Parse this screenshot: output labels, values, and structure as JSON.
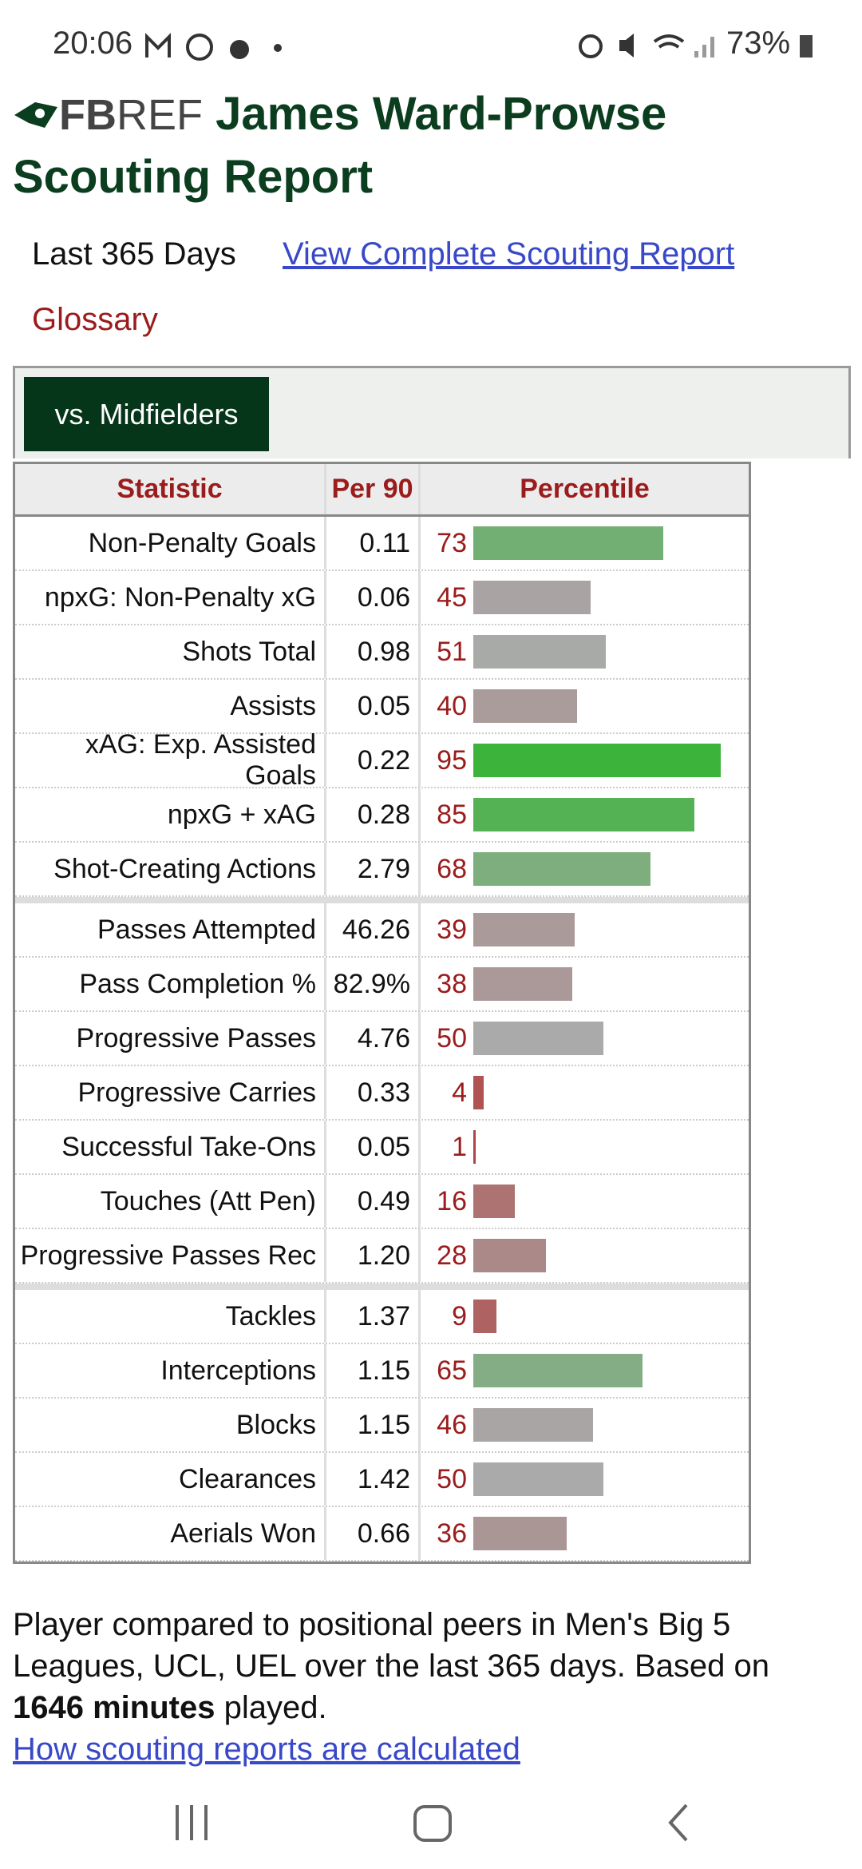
{
  "status_bar": {
    "time": "20:06",
    "battery": "73%"
  },
  "header": {
    "logo_bold": "FB",
    "logo_light": "REF",
    "title": "James Ward-Prowse Scouting Report"
  },
  "links": {
    "period": "Last 365 Days",
    "complete_report": "View Complete Scouting Report",
    "glossary": "Glossary"
  },
  "tab": "vs. Midfielders",
  "table": {
    "columns": [
      "Statistic",
      "Per 90",
      "Percentile"
    ],
    "groups": [
      [
        {
          "statistic": "Non-Penalty Goals",
          "per90": "0.11",
          "percentile": 73
        },
        {
          "statistic": "npxG: Non-Penalty xG",
          "per90": "0.06",
          "percentile": 45
        },
        {
          "statistic": "Shots Total",
          "per90": "0.98",
          "percentile": 51
        },
        {
          "statistic": "Assists",
          "per90": "0.05",
          "percentile": 40
        },
        {
          "statistic": "xAG: Exp. Assisted Goals",
          "per90": "0.22",
          "percentile": 95
        },
        {
          "statistic": "npxG + xAG",
          "per90": "0.28",
          "percentile": 85
        },
        {
          "statistic": "Shot-Creating Actions",
          "per90": "2.79",
          "percentile": 68
        }
      ],
      [
        {
          "statistic": "Passes Attempted",
          "per90": "46.26",
          "percentile": 39
        },
        {
          "statistic": "Pass Completion %",
          "per90": "82.9%",
          "percentile": 38
        },
        {
          "statistic": "Progressive Passes",
          "per90": "4.76",
          "percentile": 50
        },
        {
          "statistic": "Progressive Carries",
          "per90": "0.33",
          "percentile": 4
        },
        {
          "statistic": "Successful Take-Ons",
          "per90": "0.05",
          "percentile": 1
        },
        {
          "statistic": "Touches (Att Pen)",
          "per90": "0.49",
          "percentile": 16
        },
        {
          "statistic": "Progressive Passes Rec",
          "per90": "1.20",
          "percentile": 28
        }
      ],
      [
        {
          "statistic": "Tackles",
          "per90": "1.37",
          "percentile": 9
        },
        {
          "statistic": "Interceptions",
          "per90": "1.15",
          "percentile": 65
        },
        {
          "statistic": "Blocks",
          "per90": "1.15",
          "percentile": 46
        },
        {
          "statistic": "Clearances",
          "per90": "1.42",
          "percentile": 50
        },
        {
          "statistic": "Aerials Won",
          "per90": "0.66",
          "percentile": 36
        }
      ]
    ]
  },
  "footer": {
    "text_before": "Player compared to positional peers in Men's Big 5 Leagues, UCL, UEL over the last 365 days. Based on",
    "bold": "1646 minutes",
    "text_after": "played.",
    "link": "How scouting reports are calculated"
  }
}
